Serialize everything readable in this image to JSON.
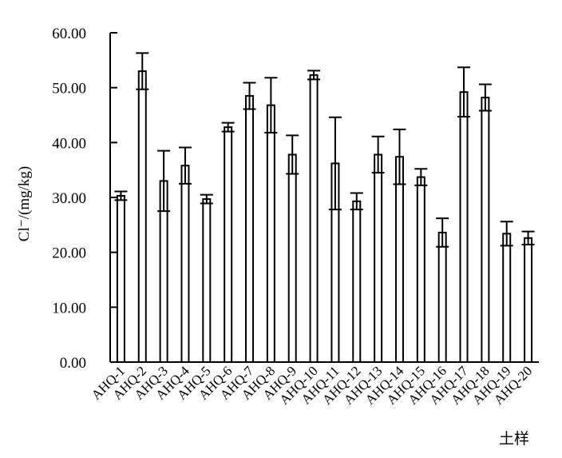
{
  "chart_data": {
    "type": "bar",
    "title": "",
    "xlabel": "土样",
    "ylabel": "Cl⁻/(mg/kg)",
    "ylim": [
      0,
      60
    ],
    "yticks": [
      "0.00",
      "10.00",
      "20.00",
      "30.00",
      "40.00",
      "50.00",
      "60.00"
    ],
    "categories": [
      "AHQ-1",
      "AHQ-2",
      "AHQ-3",
      "AHQ-4",
      "AHQ-5",
      "AHQ-6",
      "AHQ-7",
      "AHQ-8",
      "AHQ-9",
      "AHQ-10",
      "AHQ-11",
      "AHQ-12",
      "AHQ-13",
      "AHQ-14",
      "AHQ-15",
      "AHQ-16",
      "AHQ-17",
      "AHQ-18",
      "AHQ-19",
      "AHQ-20"
    ],
    "values": [
      30.3,
      53.0,
      33.0,
      35.8,
      29.7,
      42.8,
      48.5,
      46.8,
      37.8,
      52.3,
      36.2,
      29.3,
      37.8,
      37.4,
      33.7,
      23.6,
      49.2,
      48.2,
      23.4,
      22.6
    ],
    "errors": [
      0.8,
      3.3,
      5.5,
      3.3,
      0.8,
      0.8,
      2.4,
      5.0,
      3.5,
      0.8,
      8.4,
      1.5,
      3.3,
      5.0,
      1.5,
      2.6,
      4.5,
      2.4,
      2.2,
      1.2
    ],
    "error_bars": true,
    "grid": false,
    "legend": "none"
  }
}
